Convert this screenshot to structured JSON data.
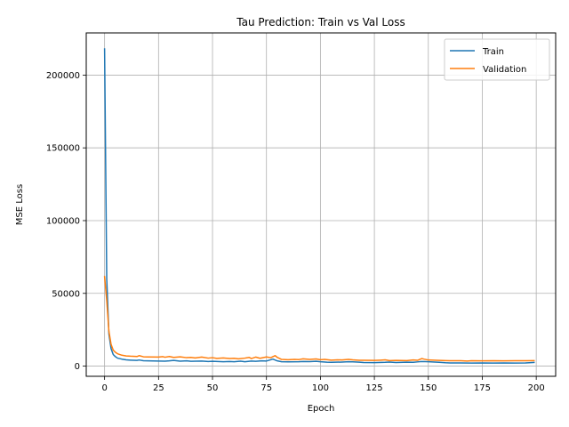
{
  "chart_data": {
    "type": "line",
    "title": "Tau Prediction: Train vs Val Loss",
    "xlabel": "Epoch",
    "ylabel": "MSE Loss",
    "xlim": [
      -8.5,
      209
    ],
    "ylim": [
      -7000,
      229000
    ],
    "xticks": [
      0,
      25,
      50,
      75,
      100,
      125,
      150,
      175,
      200
    ],
    "yticks": [
      0,
      50000,
      100000,
      150000,
      200000
    ],
    "grid": true,
    "legend_position": "top-right",
    "series": [
      {
        "name": "Train",
        "color": "#1f77b4",
        "points": [
          [
            0,
            218000
          ],
          [
            1,
            60000
          ],
          [
            2,
            22000
          ],
          [
            3,
            12000
          ],
          [
            4,
            8000
          ],
          [
            5,
            6500
          ],
          [
            6,
            5500
          ],
          [
            8,
            4800
          ],
          [
            10,
            4300
          ],
          [
            12,
            4100
          ],
          [
            15,
            3900
          ],
          [
            16,
            4200
          ],
          [
            18,
            3700
          ],
          [
            20,
            3600
          ],
          [
            25,
            3500
          ],
          [
            28,
            3400
          ],
          [
            30,
            3600
          ],
          [
            32,
            3900
          ],
          [
            35,
            3400
          ],
          [
            38,
            3600
          ],
          [
            40,
            3300
          ],
          [
            45,
            3500
          ],
          [
            48,
            3200
          ],
          [
            50,
            3300
          ],
          [
            55,
            3000
          ],
          [
            58,
            3200
          ],
          [
            60,
            3000
          ],
          [
            63,
            3400
          ],
          [
            65,
            3000
          ],
          [
            68,
            3500
          ],
          [
            70,
            3300
          ],
          [
            73,
            3600
          ],
          [
            75,
            3500
          ],
          [
            78,
            4800
          ],
          [
            80,
            3600
          ],
          [
            82,
            3000
          ],
          [
            85,
            2900
          ],
          [
            90,
            3000
          ],
          [
            92,
            3200
          ],
          [
            95,
            3100
          ],
          [
            98,
            3300
          ],
          [
            100,
            3000
          ],
          [
            103,
            2700
          ],
          [
            105,
            2600
          ],
          [
            110,
            2800
          ],
          [
            113,
            3000
          ],
          [
            115,
            2900
          ],
          [
            118,
            2700
          ],
          [
            120,
            2500
          ],
          [
            125,
            2400
          ],
          [
            130,
            2600
          ],
          [
            132,
            2800
          ],
          [
            135,
            2500
          ],
          [
            140,
            2700
          ],
          [
            143,
            2600
          ],
          [
            145,
            2900
          ],
          [
            147,
            3200
          ],
          [
            150,
            3000
          ],
          [
            155,
            2600
          ],
          [
            158,
            2300
          ],
          [
            160,
            2200
          ],
          [
            165,
            2200
          ],
          [
            170,
            2100
          ],
          [
            175,
            2200
          ],
          [
            180,
            2100
          ],
          [
            185,
            2200
          ],
          [
            190,
            2100
          ],
          [
            195,
            2200
          ],
          [
            199,
            2500
          ]
        ]
      },
      {
        "name": "Validation",
        "color": "#ff7f0e",
        "points": [
          [
            0,
            61500
          ],
          [
            1,
            45000
          ],
          [
            2,
            24000
          ],
          [
            3,
            15000
          ],
          [
            4,
            11000
          ],
          [
            5,
            9500
          ],
          [
            6,
            8500
          ],
          [
            8,
            7500
          ],
          [
            10,
            7000
          ],
          [
            12,
            6800
          ],
          [
            15,
            6600
          ],
          [
            16,
            7200
          ],
          [
            18,
            6400
          ],
          [
            20,
            6300
          ],
          [
            25,
            6200
          ],
          [
            27,
            6500
          ],
          [
            28,
            6100
          ],
          [
            30,
            6600
          ],
          [
            32,
            6000
          ],
          [
            35,
            6400
          ],
          [
            38,
            5800
          ],
          [
            40,
            6000
          ],
          [
            42,
            5600
          ],
          [
            45,
            6200
          ],
          [
            48,
            5500
          ],
          [
            50,
            5800
          ],
          [
            52,
            5300
          ],
          [
            55,
            5600
          ],
          [
            58,
            5200
          ],
          [
            60,
            5400
          ],
          [
            62,
            5000
          ],
          [
            65,
            5500
          ],
          [
            67,
            6000
          ],
          [
            68,
            5200
          ],
          [
            70,
            6200
          ],
          [
            72,
            5400
          ],
          [
            75,
            6300
          ],
          [
            77,
            5800
          ],
          [
            79,
            7200
          ],
          [
            80,
            6000
          ],
          [
            82,
            4600
          ],
          [
            85,
            4400
          ],
          [
            88,
            4600
          ],
          [
            90,
            4500
          ],
          [
            92,
            5000
          ],
          [
            95,
            4600
          ],
          [
            98,
            4900
          ],
          [
            100,
            4400
          ],
          [
            102,
            4600
          ],
          [
            105,
            4100
          ],
          [
            108,
            4300
          ],
          [
            110,
            4200
          ],
          [
            113,
            4600
          ],
          [
            115,
            4300
          ],
          [
            118,
            4000
          ],
          [
            120,
            4000
          ],
          [
            125,
            3900
          ],
          [
            128,
            4100
          ],
          [
            130,
            4300
          ],
          [
            132,
            3800
          ],
          [
            135,
            3900
          ],
          [
            140,
            3800
          ],
          [
            143,
            4200
          ],
          [
            145,
            4000
          ],
          [
            147,
            5200
          ],
          [
            148,
            4800
          ],
          [
            150,
            4200
          ],
          [
            155,
            3900
          ],
          [
            158,
            3800
          ],
          [
            160,
            3700
          ],
          [
            165,
            3700
          ],
          [
            168,
            3500
          ],
          [
            170,
            3700
          ],
          [
            175,
            3600
          ],
          [
            180,
            3700
          ],
          [
            185,
            3600
          ],
          [
            190,
            3700
          ],
          [
            195,
            3700
          ],
          [
            199,
            3800
          ]
        ]
      }
    ]
  }
}
